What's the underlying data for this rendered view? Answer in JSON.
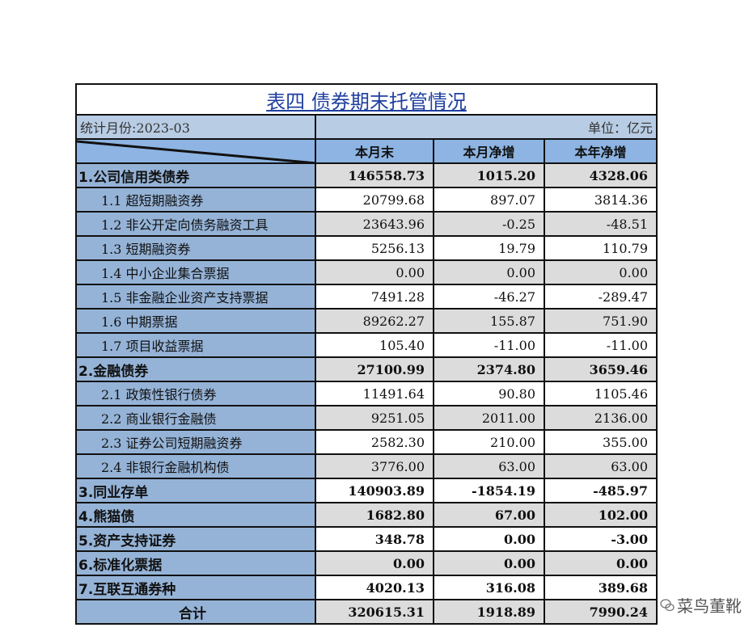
{
  "title": "表四 债券期末托管情况",
  "month_label": "统计月份:2023-03",
  "unit_label": "单位：亿元",
  "columns": [
    "本月末",
    "本月净增",
    "本年净增"
  ],
  "rows": [
    {
      "label": "1.公司信用类债券",
      "values": [
        "146558.73",
        "1015.20",
        "4328.06"
      ],
      "level": "top"
    },
    {
      "label": "1.1 超短期融资券",
      "values": [
        "20799.68",
        "897.07",
        "3814.36"
      ],
      "level": "sub"
    },
    {
      "label": "1.2 非公开定向债务融资工具",
      "values": [
        "23643.96",
        "-0.25",
        "-48.51"
      ],
      "level": "sub"
    },
    {
      "label": "1.3 短期融资券",
      "values": [
        "5256.13",
        "19.79",
        "110.79"
      ],
      "level": "sub"
    },
    {
      "label": "1.4 中小企业集合票据",
      "values": [
        "0.00",
        "0.00",
        "0.00"
      ],
      "level": "sub"
    },
    {
      "label": "1.5 非金融企业资产支持票据",
      "values": [
        "7491.28",
        "-46.27",
        "-289.47"
      ],
      "level": "sub"
    },
    {
      "label": "1.6 中期票据",
      "values": [
        "89262.27",
        "155.87",
        "751.90"
      ],
      "level": "sub"
    },
    {
      "label": "1.7 项目收益票据",
      "values": [
        "105.40",
        "-11.00",
        "-11.00"
      ],
      "level": "sub"
    },
    {
      "label": "2.金融债券",
      "values": [
        "27100.99",
        "2374.80",
        "3659.46"
      ],
      "level": "top"
    },
    {
      "label": "2.1 政策性银行债券",
      "values": [
        "11491.64",
        "90.80",
        "1105.46"
      ],
      "level": "sub"
    },
    {
      "label": "2.2 商业银行金融债",
      "values": [
        "9251.05",
        "2011.00",
        "2136.00"
      ],
      "level": "sub"
    },
    {
      "label": "2.3 证券公司短期融资券",
      "values": [
        "2582.30",
        "210.00",
        "355.00"
      ],
      "level": "sub"
    },
    {
      "label": "2.4 非银行金融机构债",
      "values": [
        "3776.00",
        "63.00",
        "63.00"
      ],
      "level": "sub"
    },
    {
      "label": "3.同业存单",
      "values": [
        "140903.89",
        "-1854.19",
        "-485.97"
      ],
      "level": "top"
    },
    {
      "label": "4.熊猫债",
      "values": [
        "1682.80",
        "67.00",
        "102.00"
      ],
      "level": "top"
    },
    {
      "label": "5.资产支持证券",
      "values": [
        "348.78",
        "0.00",
        "-3.00"
      ],
      "level": "top"
    },
    {
      "label": "6.标准化票据",
      "values": [
        "0.00",
        "0.00",
        "0.00"
      ],
      "level": "top"
    },
    {
      "label": "7.互联互通券种",
      "values": [
        "4020.13",
        "316.08",
        "389.68"
      ],
      "level": "top"
    },
    {
      "label": "合计",
      "values": [
        "320615.31",
        "1918.89",
        "7990.24"
      ],
      "level": "total"
    }
  ],
  "watermark": "菜鸟董靴"
}
